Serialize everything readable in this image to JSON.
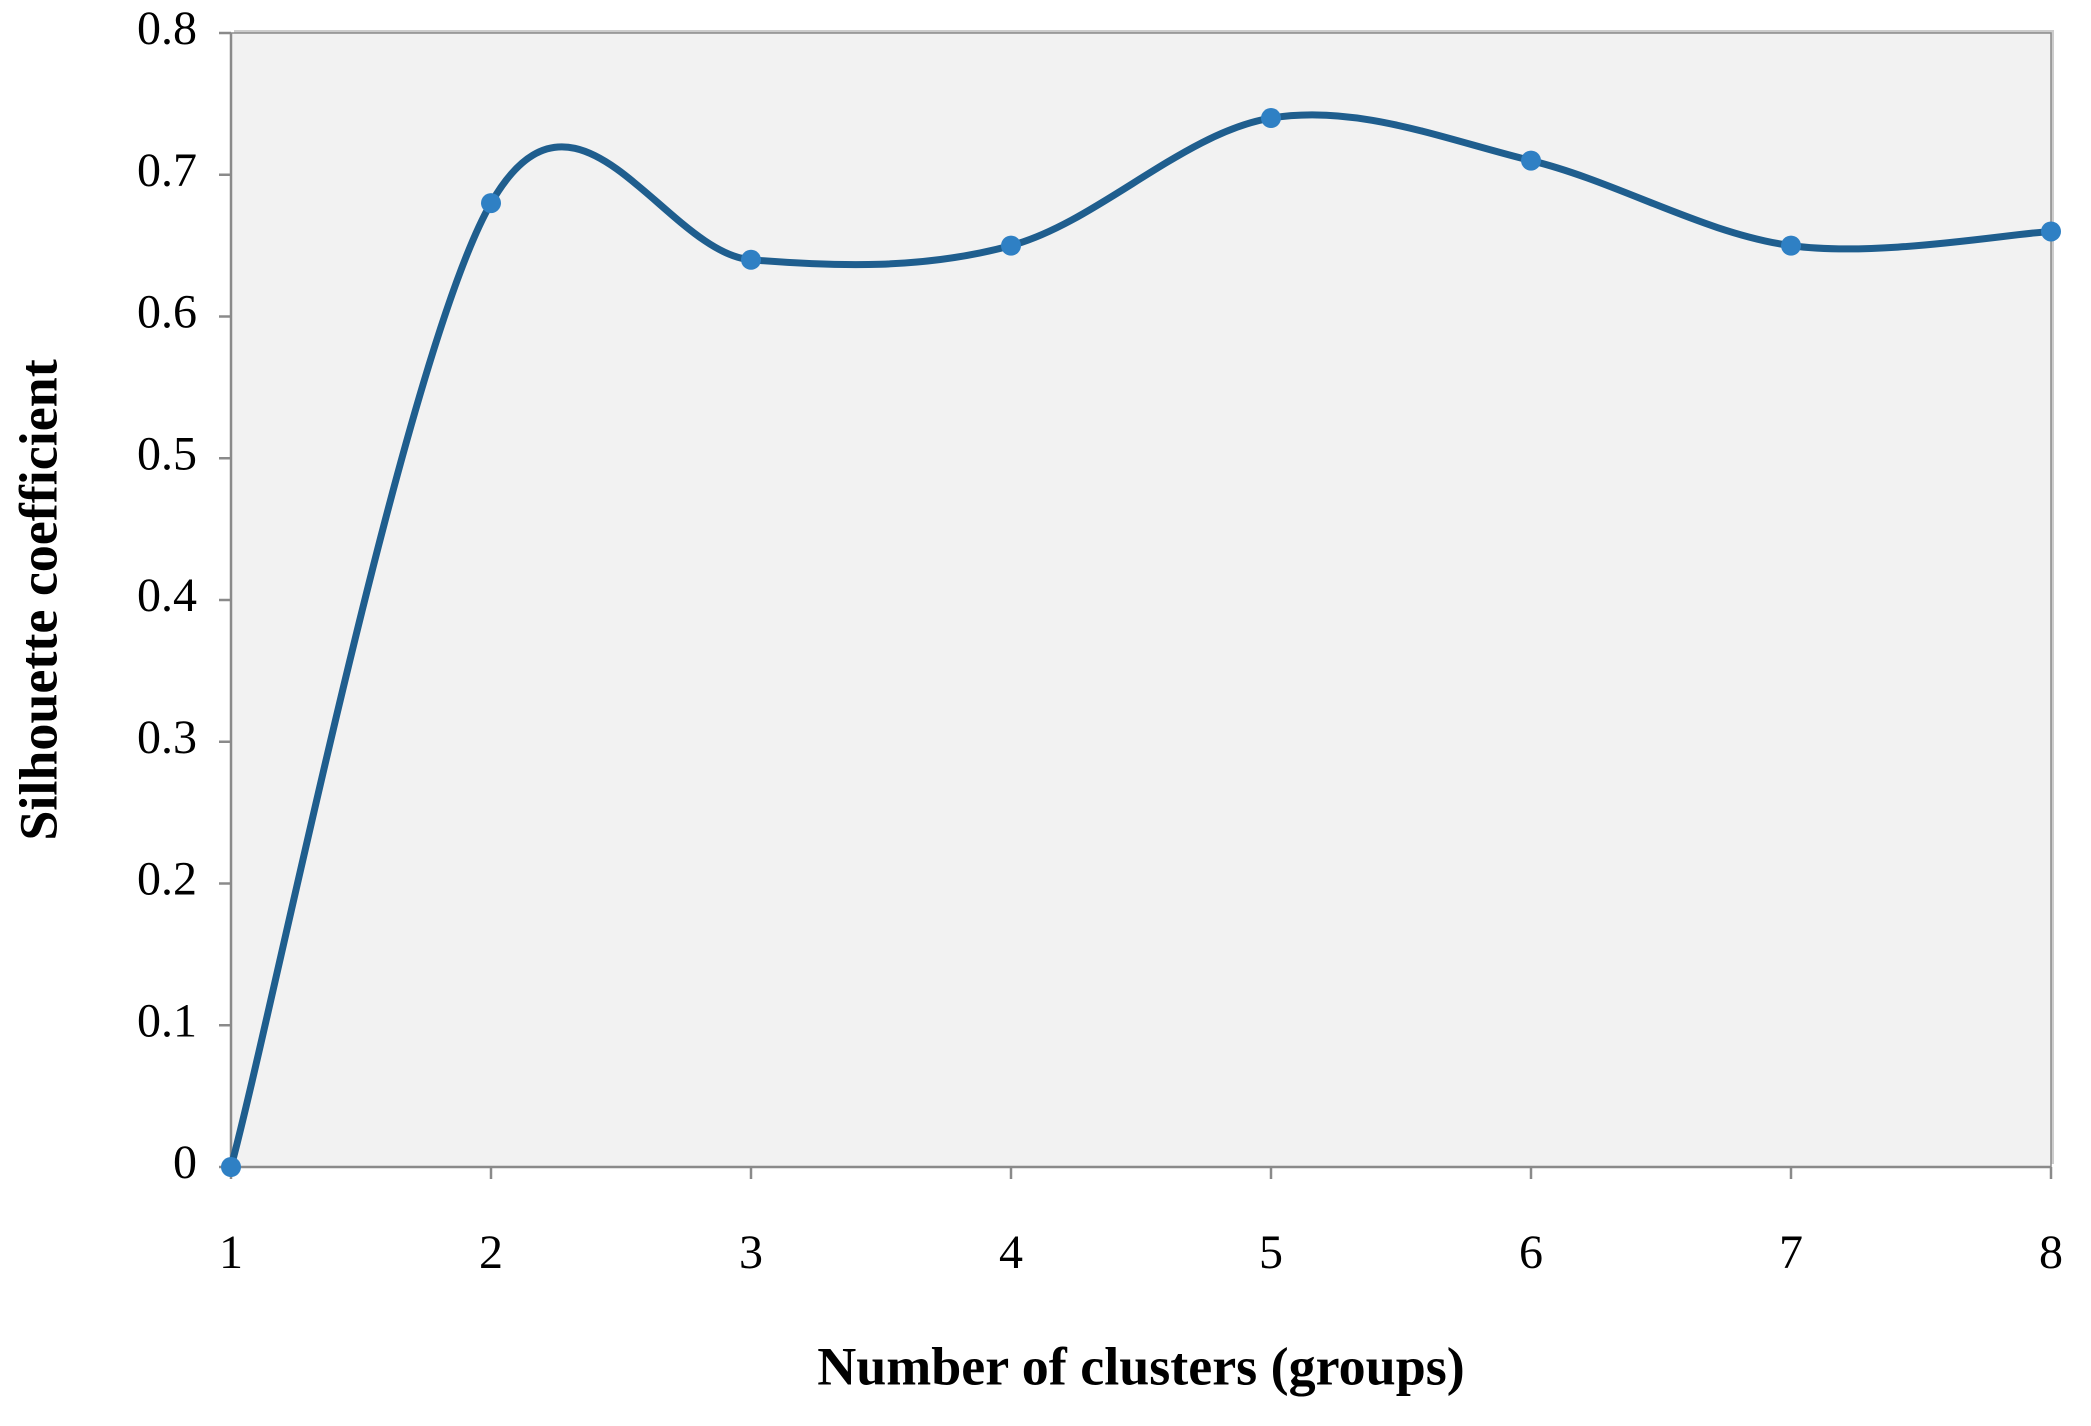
{
  "chart_data": {
    "type": "line",
    "x_label": "Number of clusters (groups)",
    "y_label": "Silhouette coefficient",
    "x": [
      1,
      2,
      3,
      4,
      5,
      6,
      7,
      8
    ],
    "series": [
      {
        "color": "#1f5e8e",
        "marker_color": "#2f80c4",
        "values": [
          0,
          0.68,
          0.64,
          0.65,
          0.74,
          0.71,
          0.65,
          0.66
        ]
      }
    ],
    "xlim": [
      1,
      8
    ],
    "xticks": [
      1,
      2,
      3,
      4,
      5,
      6,
      7,
      8
    ],
    "ylim": [
      0,
      0.8
    ],
    "yticks": [
      0,
      0.1,
      0.2,
      0.3,
      0.4,
      0.5,
      0.6,
      0.7,
      0.8
    ],
    "smooth": true
  }
}
